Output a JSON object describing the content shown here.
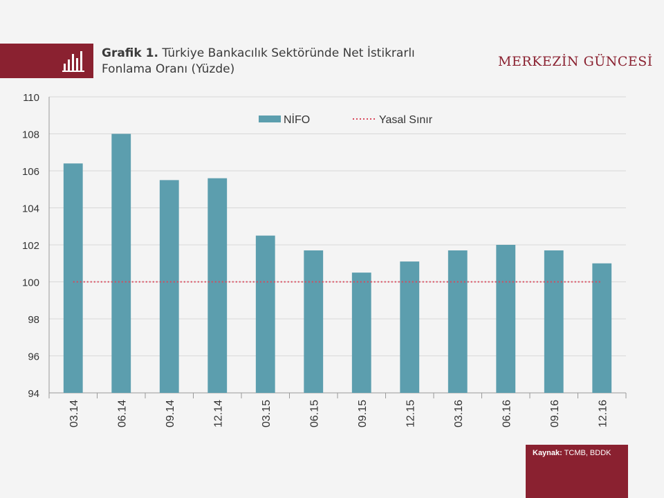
{
  "header": {
    "title_bold": "Grafik 1.",
    "title_line1": " Türkiye  Bankacılık Sektöründe Net İstikrarlı",
    "title_line2": "Fonlama Oranı (Yüzde)",
    "brand": "MERKEZİN GÜNCESİ",
    "icon": "bar-chart-icon"
  },
  "source": {
    "label": "Kaynak:",
    "value": "TCMB, BDDK"
  },
  "colors": {
    "bar": "#5c9eae",
    "limit_line": "#d9475a",
    "brand": "#8a2130"
  },
  "chart_data": {
    "type": "bar",
    "categories": [
      "03.14",
      "06.14",
      "09.14",
      "12.14",
      "03.15",
      "06.15",
      "09.15",
      "12.15",
      "03.16",
      "06.16",
      "09.16",
      "12.16"
    ],
    "series": [
      {
        "name": "NİFO",
        "type": "bar",
        "values": [
          106.4,
          108.0,
          105.5,
          105.6,
          102.5,
          101.7,
          100.5,
          101.1,
          101.7,
          102.0,
          101.7,
          101.0
        ]
      },
      {
        "name": "Yasal Sınır",
        "type": "line-dotted",
        "values": [
          100,
          100,
          100,
          100,
          100,
          100,
          100,
          100,
          100,
          100,
          100,
          100
        ]
      }
    ],
    "ylim": [
      94,
      110
    ],
    "yticks": [
      94,
      96,
      98,
      100,
      102,
      104,
      106,
      108,
      110
    ],
    "grid": true,
    "legend_position": "top"
  }
}
